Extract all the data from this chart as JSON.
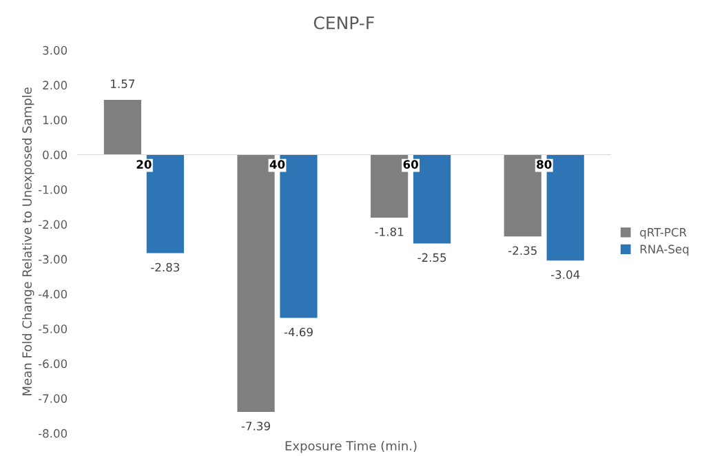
{
  "chart_data": {
    "type": "bar",
    "title": "CENP-F",
    "xlabel": "Exposure Time (min.)",
    "ylabel": "Mean Fold Change Relative to Unexposed Sample",
    "categories": [
      "20",
      "40",
      "60",
      "80"
    ],
    "series": [
      {
        "name": "qRT-PCR",
        "color": "#7f7f7f",
        "values": [
          1.57,
          -7.39,
          -1.81,
          -2.35
        ]
      },
      {
        "name": "RNA-Seq",
        "color": "#2e75b6",
        "values": [
          -2.83,
          -4.69,
          -2.55,
          -3.04
        ]
      }
    ],
    "ylim": [
      -8,
      3
    ],
    "yticks": [
      {
        "value": 3,
        "label": "3.00"
      },
      {
        "value": 2,
        "label": "2.00"
      },
      {
        "value": 1,
        "label": "1.00"
      },
      {
        "value": 0,
        "label": "0.00"
      },
      {
        "value": -1,
        "label": "-1.00"
      },
      {
        "value": -2,
        "label": "-2.00"
      },
      {
        "value": -3,
        "label": "-3.00"
      },
      {
        "value": -4,
        "label": "-4.00"
      },
      {
        "value": -5,
        "label": "-5.00"
      },
      {
        "value": -6,
        "label": "-6.00"
      },
      {
        "value": -7,
        "label": "-7.00"
      },
      {
        "value": -8,
        "label": "-8.00"
      }
    ],
    "data_labels": true,
    "grid": false,
    "legend": "right"
  }
}
